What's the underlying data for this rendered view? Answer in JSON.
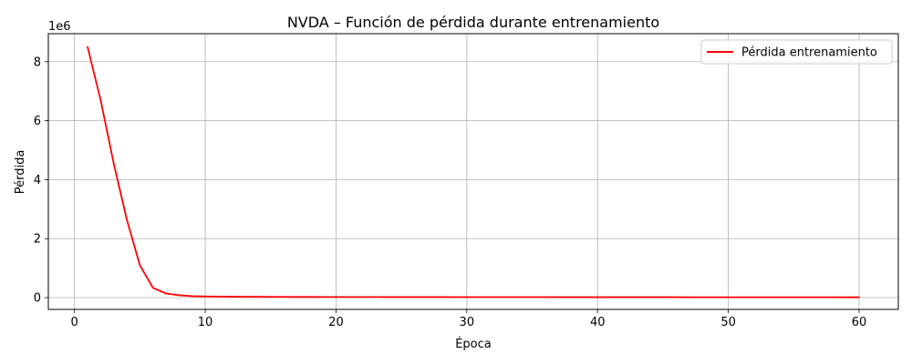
{
  "chart_data": {
    "type": "line",
    "title": "NVDA – Función de pérdida durante entrenamiento",
    "xlabel": "Época",
    "ylabel": "Pérdida",
    "y_offset_label": "1e6",
    "y_scale_factor": 1000000,
    "xlim": [
      -2,
      63
    ],
    "ylim": [
      -400000,
      8950000
    ],
    "x_ticks": [
      0,
      10,
      20,
      30,
      40,
      50,
      60
    ],
    "y_ticks": [
      0,
      2000000,
      4000000,
      6000000,
      8000000
    ],
    "y_tick_labels": [
      "0",
      "2",
      "4",
      "6",
      "8"
    ],
    "grid": true,
    "legend_position": "top-right",
    "series": [
      {
        "name": "Pérdida entrenamiento",
        "color": "#ff0000",
        "x": [
          1,
          2,
          3,
          4,
          5,
          6,
          7,
          8,
          9,
          10,
          11,
          12,
          13,
          14,
          15,
          16,
          17,
          18,
          19,
          20,
          21,
          22,
          23,
          24,
          25,
          26,
          27,
          28,
          29,
          30,
          31,
          32,
          33,
          34,
          35,
          36,
          37,
          38,
          39,
          40,
          41,
          42,
          43,
          44,
          45,
          46,
          47,
          48,
          49,
          50,
          51,
          52,
          53,
          54,
          55,
          56,
          57,
          58,
          59,
          60
        ],
        "values": [
          8500000,
          6700000,
          4550000,
          2650000,
          1100000,
          330000,
          140000,
          80000,
          50000,
          40000,
          35000,
          30000,
          28000,
          26000,
          25000,
          24000,
          23000,
          22000,
          21500,
          21000,
          20500,
          20000,
          19500,
          19000,
          19000,
          18500,
          18000,
          18000,
          17500,
          17500,
          17000,
          17000,
          16500,
          16500,
          16000,
          16000,
          15500,
          15500,
          15000,
          15000,
          15000,
          14500,
          14500,
          14000,
          14000,
          14000,
          13500,
          13500,
          13000,
          13000,
          13000,
          12500,
          12500,
          12000,
          12000,
          12000,
          11500,
          11500,
          11000,
          11000
        ]
      }
    ]
  }
}
